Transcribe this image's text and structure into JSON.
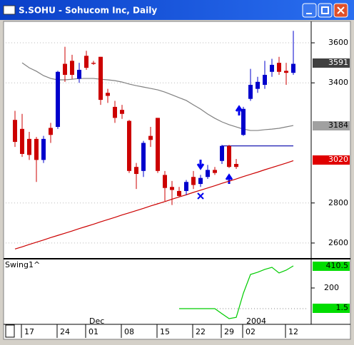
{
  "window": {
    "title": "S.SOHU - Sohucom Inc, Daily"
  },
  "chart_data": [
    {
      "type": "candlestick",
      "categories": [
        null,
        "17",
        null,
        null,
        null,
        null,
        "24",
        null,
        null,
        null,
        "01",
        null,
        null,
        null,
        null,
        "08",
        null,
        null,
        null,
        null,
        "15",
        null,
        null,
        null,
        null,
        "22",
        null,
        null,
        null,
        "29",
        null,
        null,
        "02",
        null,
        null,
        null,
        null,
        null,
        "12",
        null
      ],
      "open": [
        3215,
        3170,
        3120,
        3120,
        3015,
        3175,
        3180,
        3495,
        3510,
        3420,
        3535,
        3500,
        3530,
        3350,
        3280,
        3265,
        3210,
        2980,
        2960,
        3135,
        3225,
        2940,
        2880,
        2860,
        2860,
        2930,
        2895,
        2930,
        2965,
        3010,
        3085,
        2995,
        3140,
        3320,
        3370,
        3390,
        3455,
        3500,
        3460,
        3450
      ],
      "high": [
        3260,
        3245,
        3155,
        3130,
        3135,
        3200,
        3460,
        3580,
        3540,
        3500,
        3560,
        3510,
        3530,
        3370,
        3310,
        3290,
        3215,
        3000,
        3110,
        3180,
        3225,
        2960,
        2910,
        2880,
        2915,
        2960,
        2940,
        2990,
        2980,
        3090,
        3090,
        3020,
        3280,
        3470,
        3430,
        3510,
        3520,
        3530,
        3500,
        3660
      ],
      "low": [
        3080,
        3030,
        3015,
        2905,
        3000,
        3100,
        3170,
        3405,
        3420,
        3400,
        3465,
        3490,
        3290,
        3300,
        3200,
        3220,
        2950,
        2870,
        2930,
        3080,
        2950,
        2810,
        2790,
        2830,
        2840,
        2870,
        2880,
        2920,
        2940,
        2995,
        2975,
        2970,
        3135,
        3310,
        3350,
        3370,
        3430,
        3440,
        3390,
        3440
      ],
      "close": [
        3105,
        3045,
        3040,
        3015,
        3120,
        3140,
        3455,
        3440,
        3440,
        3465,
        3475,
        3495,
        3315,
        3335,
        3225,
        3245,
        2960,
        2945,
        3100,
        3115,
        2960,
        2875,
        2865,
        2835,
        2905,
        2890,
        2925,
        2965,
        2950,
        3085,
        2980,
        2980,
        3270,
        3390,
        3405,
        3440,
        3490,
        3455,
        3450,
        3495
      ],
      "up_color": "#0000cc",
      "down_color": "#cc0000",
      "overlays": [
        {
          "color": "#808080",
          "values": [
            null,
            3500,
            3475,
            3458,
            3436,
            3422,
            3415,
            3415,
            3418,
            3422,
            3422,
            3422,
            3418,
            3415,
            3411,
            3404,
            3394,
            3386,
            3379,
            3372,
            3365,
            3354,
            3340,
            3326,
            3312,
            3290,
            3269,
            3244,
            3223,
            3205,
            3191,
            3180,
            3169,
            3162,
            3162,
            3166,
            3169,
            3173,
            3180,
            3187
          ]
        },
        {
          "color": "#cc0000",
          "values": [
            2570,
            2581,
            2593,
            2604,
            2615,
            2627,
            2638,
            2649,
            2660,
            2672,
            2683,
            2694,
            2706,
            2717,
            2728,
            2740,
            2751,
            2762,
            2773,
            2785,
            2796,
            2807,
            2819,
            2830,
            2841,
            2853,
            2864,
            2875,
            2886,
            2898,
            2909,
            2920,
            2932,
            2943,
            2954,
            2966,
            2977,
            2988,
            2999,
            3011
          ]
        },
        {
          "color": "#0000aa",
          "values": [
            null,
            null,
            null,
            null,
            null,
            null,
            null,
            null,
            null,
            null,
            null,
            null,
            null,
            null,
            null,
            null,
            null,
            null,
            null,
            null,
            null,
            null,
            null,
            null,
            null,
            null,
            null,
            null,
            null,
            3085,
            3085,
            3085,
            3085,
            3085,
            3085,
            3085,
            3085,
            3085,
            3085,
            3085
          ]
        }
      ],
      "ylim": [
        2525,
        3707
      ],
      "yticks": [
        2600,
        2800,
        3400,
        3600
      ],
      "price_labels": [
        "3591",
        "3184",
        "3020"
      ],
      "x_period_labels": [
        "Dec",
        "2004"
      ]
    },
    {
      "type": "line",
      "title": "Swing1^",
      "color": "#00cc00",
      "values": [
        null,
        null,
        null,
        null,
        null,
        null,
        null,
        null,
        null,
        null,
        null,
        null,
        null,
        null,
        null,
        null,
        null,
        null,
        null,
        null,
        null,
        null,
        null,
        3,
        3,
        3,
        3,
        3,
        3,
        -45,
        -92,
        -80,
        150,
        329,
        350,
        377,
        397,
        343,
        370,
        410.5
      ],
      "ylim": [
        -126,
        465
      ],
      "yticks": [
        200
      ],
      "price_labels": [
        "410.5",
        "1.5"
      ]
    }
  ]
}
